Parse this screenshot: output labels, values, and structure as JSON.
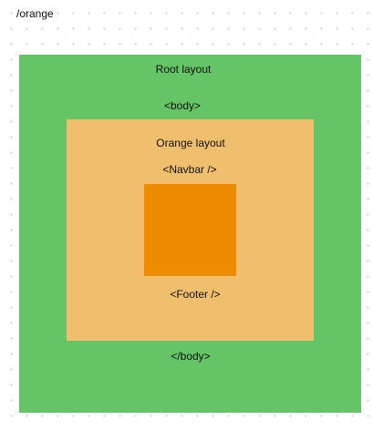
{
  "route": "/orange",
  "root_layout": {
    "title": "Root layout",
    "body_open": "<body>",
    "body_close": "</body>",
    "color": "#64c466"
  },
  "orange_layout": {
    "title": "Orange layout",
    "navbar": "<Navbar />",
    "footer": "<Footer />",
    "color": "#efbf6d"
  },
  "page": {
    "color": "#ee8c00"
  }
}
